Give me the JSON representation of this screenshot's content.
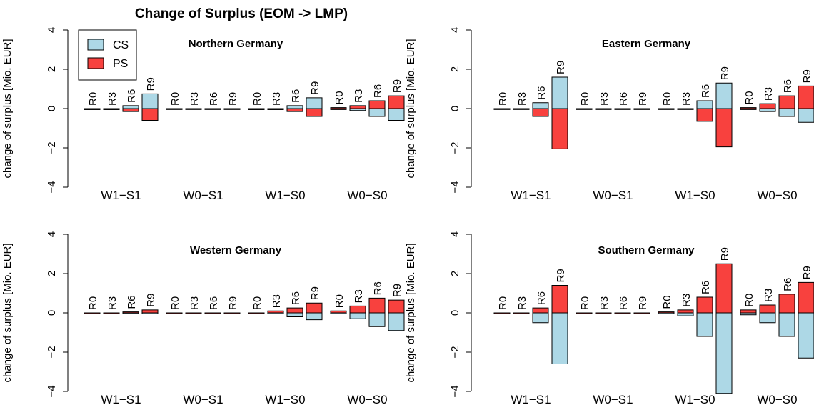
{
  "chart_data": {
    "type": "bar",
    "title": "Change of Surplus (EOM -> LMP)",
    "ylabel": "change of surplus [Mio. EUR]",
    "ylim": [
      -4,
      4
    ],
    "yticks": [
      -4,
      -2,
      0,
      2,
      4
    ],
    "groups": [
      "W1−S1",
      "W0−S1",
      "W1−S0",
      "W0−S0"
    ],
    "bar_labels": [
      "R0",
      "R3",
      "R6",
      "R9"
    ],
    "legend": {
      "placement": "top-left of first panel",
      "entries": [
        {
          "name": "CS",
          "color": "#add8e6"
        },
        {
          "name": "PS",
          "color": "#f8413e"
        }
      ]
    },
    "panels": [
      {
        "title": "Northern Germany",
        "cs": [
          [
            -0.05,
            -0.05,
            0.15,
            0.75
          ],
          [
            0,
            0,
            0,
            0
          ],
          [
            -0.05,
            -0.05,
            0.15,
            0.55
          ],
          [
            -0.05,
            -0.1,
            -0.4,
            -0.6
          ]
        ],
        "ps": [
          [
            -0.05,
            -0.05,
            -0.15,
            -0.6
          ],
          [
            0,
            0,
            0,
            0
          ],
          [
            -0.05,
            -0.05,
            -0.15,
            -0.4
          ],
          [
            0.05,
            0.15,
            0.4,
            0.65
          ]
        ]
      },
      {
        "title": "Eastern Germany",
        "cs": [
          [
            0,
            0,
            0.3,
            1.6
          ],
          [
            0,
            0,
            0,
            0
          ],
          [
            0,
            0,
            0.4,
            1.3
          ],
          [
            -0.05,
            -0.15,
            -0.4,
            -0.7
          ]
        ],
        "ps": [
          [
            0,
            0,
            -0.4,
            -2.05
          ],
          [
            0,
            0,
            0,
            0
          ],
          [
            0,
            0,
            -0.65,
            -1.95
          ],
          [
            0.05,
            0.25,
            0.65,
            1.15
          ]
        ]
      },
      {
        "title": "Western Germany",
        "cs": [
          [
            0,
            0,
            0,
            -0.05
          ],
          [
            0,
            0,
            0,
            0
          ],
          [
            0,
            -0.05,
            -0.2,
            -0.35
          ],
          [
            -0.05,
            -0.3,
            -0.7,
            -0.9
          ]
        ],
        "ps": [
          [
            0,
            0,
            0.05,
            0.15
          ],
          [
            0,
            0,
            0,
            0
          ],
          [
            0,
            0.1,
            0.25,
            0.5
          ],
          [
            0.1,
            0.35,
            0.75,
            0.65
          ]
        ]
      },
      {
        "title": "Southern Germany",
        "cs": [
          [
            0,
            0,
            -0.5,
            -2.6
          ],
          [
            0,
            0,
            0,
            0
          ],
          [
            -0.05,
            -0.15,
            -1.2,
            -4.1
          ],
          [
            -0.1,
            -0.5,
            -1.2,
            -2.3
          ]
        ],
        "ps": [
          [
            0,
            0,
            0.25,
            1.4
          ],
          [
            0,
            0,
            0,
            0
          ],
          [
            0.05,
            0.15,
            0.8,
            2.5
          ],
          [
            0.15,
            0.4,
            0.95,
            1.55
          ]
        ]
      }
    ]
  }
}
